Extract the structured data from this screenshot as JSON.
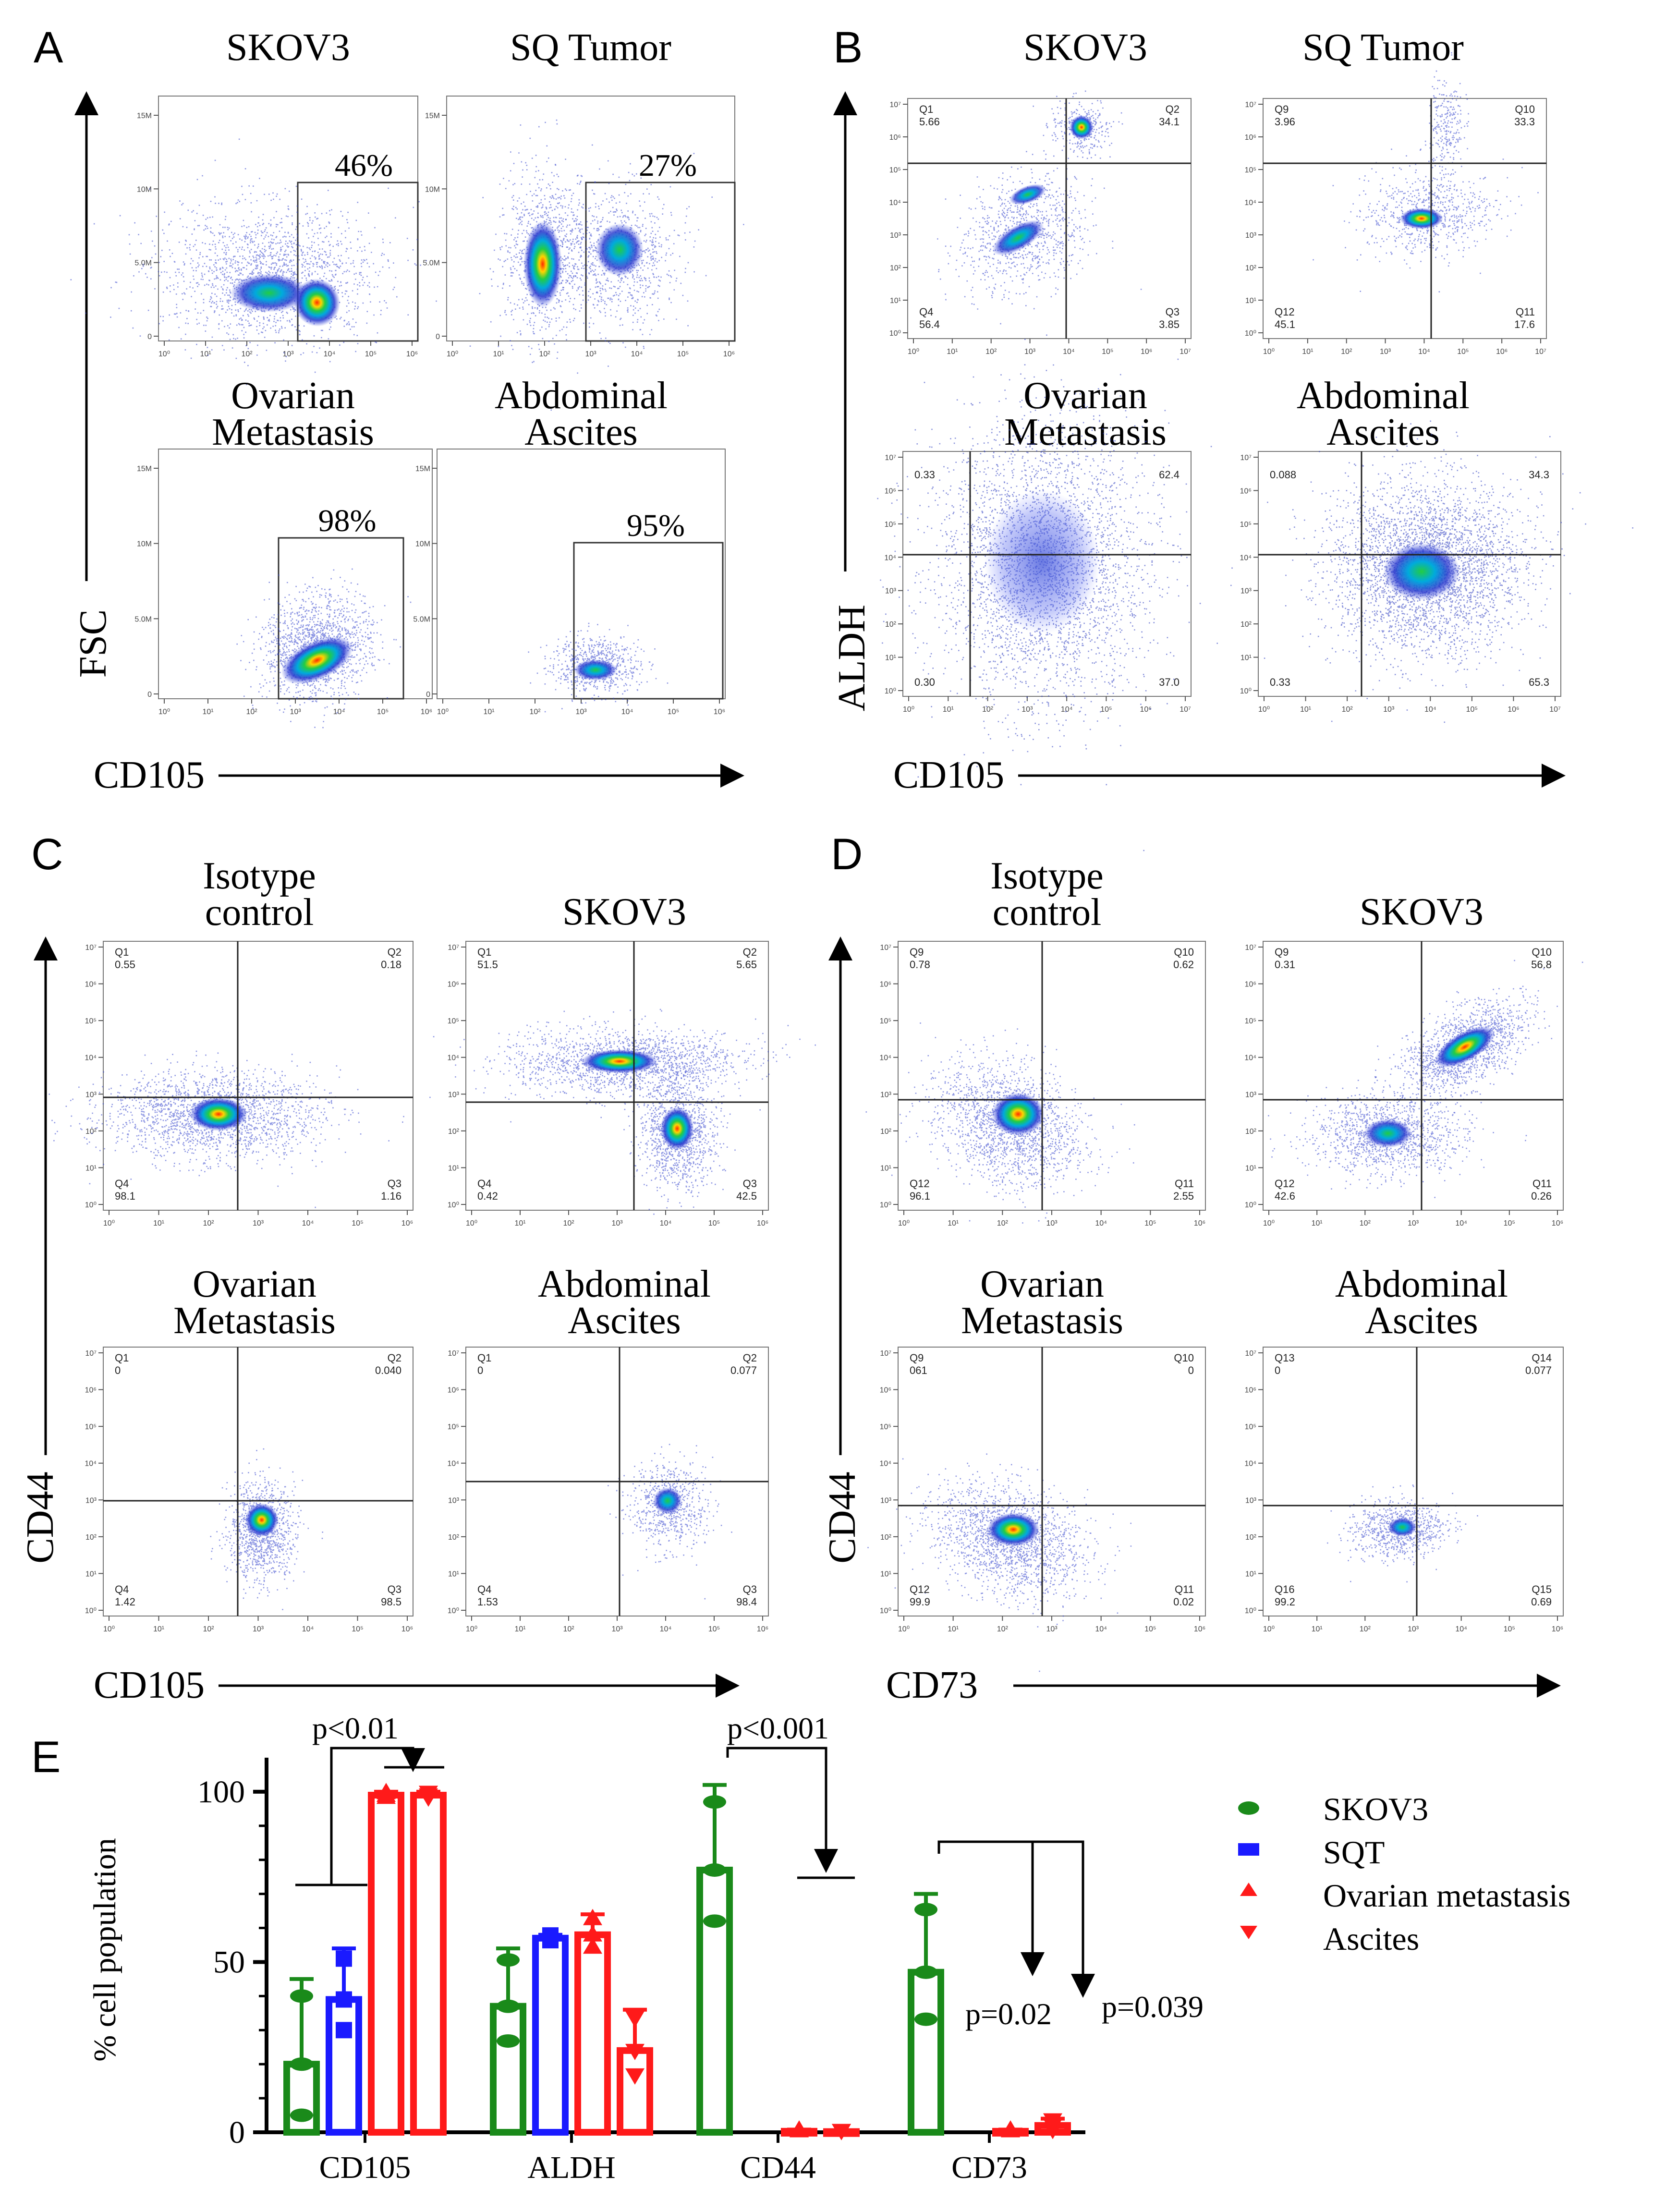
{
  "panels": {
    "A": {
      "letter": "A",
      "y_axis": "FSC",
      "x_axis": "CD105",
      "plots": [
        {
          "id": "a1",
          "title": [
            "SKOV3"
          ],
          "gate": "46%",
          "yticks": [
            "15M",
            "10M",
            "5.0M",
            "0"
          ],
          "xticks": [
            "10⁰",
            "10¹",
            "10²",
            "10³",
            "10⁴",
            "10⁵",
            "10⁶"
          ]
        },
        {
          "id": "a2",
          "title": [
            "SQ Tumor"
          ],
          "gate": "27%",
          "yticks": [
            "15M",
            "10M",
            "5.0M",
            "0"
          ],
          "xticks": [
            "10⁰",
            "10¹",
            "10²",
            "10³",
            "10⁴",
            "10⁵",
            "10⁶"
          ]
        },
        {
          "id": "a3",
          "title": [
            "Ovarian",
            "Metastasis"
          ],
          "gate": "98%",
          "yticks": [
            "15M",
            "10M",
            "5.0M",
            "0"
          ],
          "xticks": [
            "10⁰",
            "10¹",
            "10²",
            "10³",
            "10⁴",
            "10⁵",
            "10⁶"
          ]
        },
        {
          "id": "a4",
          "title": [
            "Abdominal",
            "Ascites"
          ],
          "gate": "95%",
          "yticks": [
            "15M",
            "10M",
            "5.0M",
            "0"
          ],
          "xticks": [
            "10⁰",
            "10¹",
            "10²",
            "10³",
            "10⁴",
            "10⁵",
            "10⁶"
          ]
        }
      ]
    },
    "B": {
      "letter": "B",
      "y_axis": "ALDH",
      "x_axis": "CD105",
      "plots": [
        {
          "id": "b1",
          "title": [
            "SKOV3"
          ],
          "q": {
            "ul": [
              "Q1",
              "5.66"
            ],
            "ur": [
              "Q2",
              "34.1"
            ],
            "ll": [
              "Q4",
              "56.4"
            ],
            "lr": [
              "Q3",
              "3.85"
            ]
          }
        },
        {
          "id": "b2",
          "title": [
            "SQ Tumor"
          ],
          "q": {
            "ul": [
              "Q9",
              "3.96"
            ],
            "ur": [
              "Q10",
              "33.3"
            ],
            "ll": [
              "Q12",
              "45.1"
            ],
            "lr": [
              "Q11",
              "17.6"
            ]
          }
        },
        {
          "id": "b3",
          "title": [
            "Ovarian",
            "Metastasis"
          ],
          "q": {
            "ul": [
              "",
              "0.33"
            ],
            "ur": [
              "",
              "62.4"
            ],
            "ll": [
              "",
              "0.30"
            ],
            "lr": [
              "",
              "37.0"
            ]
          }
        },
        {
          "id": "b4",
          "title": [
            "Abdominal",
            "Ascites"
          ],
          "q": {
            "ul": [
              "",
              "0.088"
            ],
            "ur": [
              "",
              "34.3"
            ],
            "ll": [
              "",
              "0.33"
            ],
            "lr": [
              "",
              "65.3"
            ]
          }
        }
      ]
    },
    "C": {
      "letter": "C",
      "y_axis": "CD44",
      "x_axis": "CD105",
      "plots": [
        {
          "id": "c1",
          "title": [
            "Isotype",
            "control"
          ],
          "q": {
            "ul": [
              "Q1",
              "0.55"
            ],
            "ur": [
              "Q2",
              "0.18"
            ],
            "ll": [
              "Q4",
              "98.1"
            ],
            "lr": [
              "Q3",
              "1.16"
            ]
          }
        },
        {
          "id": "c2",
          "title": [
            "SKOV3"
          ],
          "q": {
            "ul": [
              "Q1",
              "51.5"
            ],
            "ur": [
              "Q2",
              "5.65"
            ],
            "ll": [
              "Q4",
              "0.42"
            ],
            "lr": [
              "Q3",
              "42.5"
            ]
          }
        },
        {
          "id": "c3",
          "title": [
            "Ovarian",
            "Metastasis"
          ],
          "q": {
            "ul": [
              "Q1",
              "0"
            ],
            "ur": [
              "Q2",
              "0.040"
            ],
            "ll": [
              "Q4",
              "1.42"
            ],
            "lr": [
              "Q3",
              "98.5"
            ]
          }
        },
        {
          "id": "c4",
          "title": [
            "Abdominal",
            "Ascites"
          ],
          "q": {
            "ul": [
              "Q1",
              "0"
            ],
            "ur": [
              "Q2",
              "0.077"
            ],
            "ll": [
              "Q4",
              "1.53"
            ],
            "lr": [
              "Q3",
              "98.4"
            ]
          }
        }
      ]
    },
    "D": {
      "letter": "D",
      "y_axis": "CD44",
      "x_axis": "CD73",
      "plots": [
        {
          "id": "d1",
          "title": [
            "Isotype",
            "control"
          ],
          "q": {
            "ul": [
              "Q9",
              "0.78"
            ],
            "ur": [
              "Q10",
              "0.62"
            ],
            "ll": [
              "Q12",
              "96.1"
            ],
            "lr": [
              "Q11",
              "2.55"
            ]
          }
        },
        {
          "id": "d2",
          "title": [
            "SKOV3"
          ],
          "q": {
            "ul": [
              "Q9",
              "0.31"
            ],
            "ur": [
              "Q10",
              "56.8"
            ],
            "ll": [
              "Q12",
              "42.6"
            ],
            "lr": [
              "Q11",
              "0.26"
            ]
          }
        },
        {
          "id": "d3",
          "title": [
            "Ovarian",
            "Metastasis"
          ],
          "q": {
            "ul": [
              "Q9",
              "061"
            ],
            "ur": [
              "Q10",
              "0"
            ],
            "ll": [
              "Q12",
              "99.9"
            ],
            "lr": [
              "Q11",
              "0.02"
            ]
          }
        },
        {
          "id": "d4",
          "title": [
            "Abdominal",
            "Ascites"
          ],
          "q": {
            "ul": [
              "Q13",
              "0"
            ],
            "ur": [
              "Q14",
              "0.077"
            ],
            "ll": [
              "Q16",
              "99.2"
            ],
            "lr": [
              "Q15",
              "0.69"
            ]
          }
        }
      ]
    }
  },
  "decades": [
    "10⁰",
    "10¹",
    "10²",
    "10³",
    "10⁴",
    "10⁵",
    "10⁶",
    "10⁷"
  ],
  "chart_data": {
    "type": "bar",
    "panel_letter": "E",
    "title": "",
    "ylabel": "% cell population",
    "xlabel": "",
    "ylim": [
      0,
      110
    ],
    "yticks": [
      0,
      50,
      100
    ],
    "categories": [
      "CD105",
      "ALDH",
      "CD44",
      "CD73"
    ],
    "series": [
      {
        "name": "SKOV3",
        "color": "#1a8a1a",
        "marker": "ellipse",
        "values": [
          20,
          37,
          77,
          47
        ],
        "errors": [
          25,
          17,
          25,
          23
        ]
      },
      {
        "name": "SQT",
        "color": "#1a1aff",
        "marker": "square",
        "values": [
          39,
          57,
          null,
          null
        ],
        "errors": [
          15,
          1,
          null,
          null
        ]
      },
      {
        "name": "Ovarian metastasis",
        "color": "#ff1a1a",
        "marker": "triangle-up",
        "values": [
          99,
          58,
          0.3,
          0.3
        ],
        "errors": [
          1,
          6,
          0.5,
          0.5
        ]
      },
      {
        "name": "Ascites",
        "color": "#ff1a1a",
        "marker": "triangle-down",
        "values": [
          99,
          24,
          0.2,
          2
        ],
        "errors": [
          1,
          12,
          0.3,
          2
        ]
      }
    ],
    "annotations": [
      {
        "text": "p<0.01",
        "category": "CD105"
      },
      {
        "text": "p<0.001",
        "category": "CD44"
      },
      {
        "text": "p=0.02",
        "category": "CD73"
      },
      {
        "text": "p=0.039",
        "category": "CD73"
      }
    ]
  }
}
